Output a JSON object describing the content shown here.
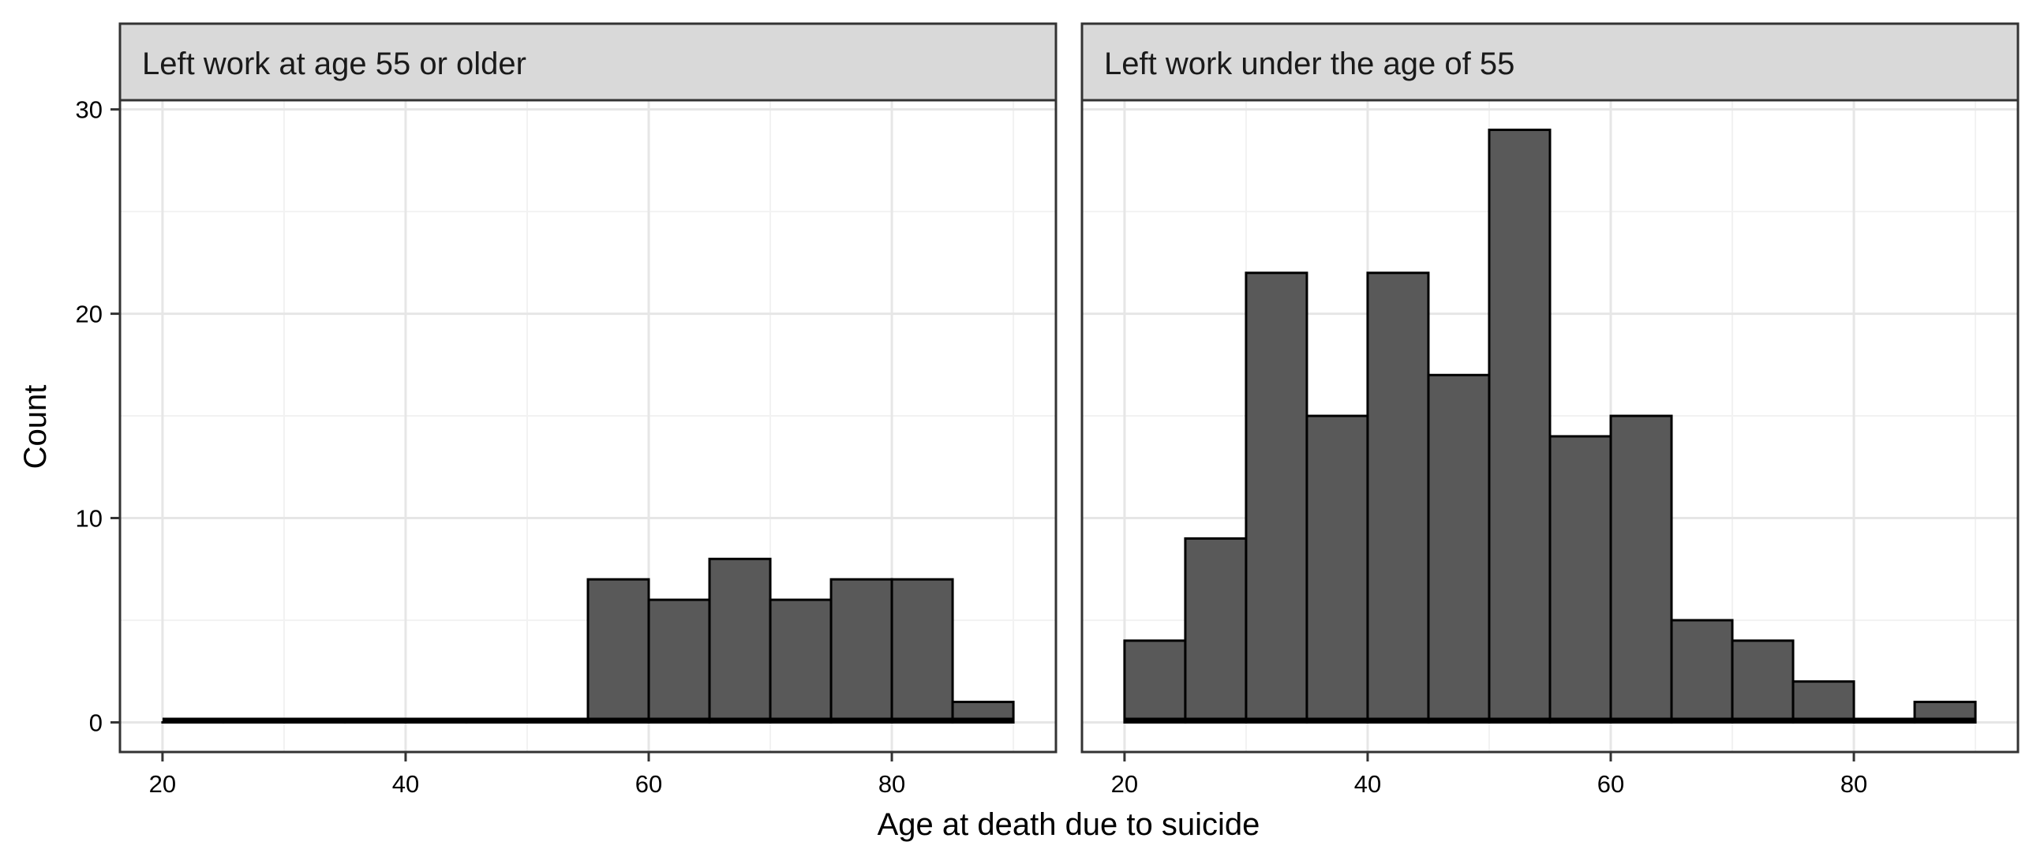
{
  "figure": {
    "xlabel": "Age at death due to suicide",
    "ylabel": "Count"
  },
  "colors": {
    "bar_fill": "#595959",
    "bar_stroke": "#000000",
    "strip_fill": "#d9d9d9",
    "grid_major": "#e6e6e6",
    "grid_minor": "#f2f2f2",
    "panel_border": "#333333"
  },
  "chart_data": [
    {
      "type": "bar",
      "title": "Left work at age 55 or older",
      "bin_width": 5,
      "bins": [
        {
          "start": 20,
          "end": 25,
          "count": 0
        },
        {
          "start": 25,
          "end": 30,
          "count": 0
        },
        {
          "start": 30,
          "end": 35,
          "count": 0
        },
        {
          "start": 35,
          "end": 40,
          "count": 0
        },
        {
          "start": 40,
          "end": 45,
          "count": 0
        },
        {
          "start": 45,
          "end": 50,
          "count": 0
        },
        {
          "start": 50,
          "end": 55,
          "count": 0
        },
        {
          "start": 55,
          "end": 60,
          "count": 7
        },
        {
          "start": 60,
          "end": 65,
          "count": 6
        },
        {
          "start": 65,
          "end": 70,
          "count": 8
        },
        {
          "start": 70,
          "end": 75,
          "count": 6
        },
        {
          "start": 75,
          "end": 80,
          "count": 7
        },
        {
          "start": 80,
          "end": 85,
          "count": 7
        },
        {
          "start": 85,
          "end": 90,
          "count": 1
        }
      ],
      "xlim": [
        16.5,
        93.5
      ],
      "ylim": [
        -1.45,
        30.45
      ],
      "x_ticks": [
        20,
        40,
        60,
        80
      ],
      "x_tick_labels": [
        "20",
        "40",
        "60",
        "80"
      ],
      "y_ticks": [
        0,
        10,
        20,
        30
      ],
      "y_tick_labels": [
        "0",
        "10",
        "20",
        "30"
      ],
      "grid": true
    },
    {
      "type": "bar",
      "title": "Left work under the age of 55",
      "bin_width": 5,
      "bins": [
        {
          "start": 20,
          "end": 25,
          "count": 4
        },
        {
          "start": 25,
          "end": 30,
          "count": 9
        },
        {
          "start": 30,
          "end": 35,
          "count": 22
        },
        {
          "start": 35,
          "end": 40,
          "count": 15
        },
        {
          "start": 40,
          "end": 45,
          "count": 22
        },
        {
          "start": 45,
          "end": 50,
          "count": 17
        },
        {
          "start": 50,
          "end": 55,
          "count": 29
        },
        {
          "start": 55,
          "end": 60,
          "count": 14
        },
        {
          "start": 60,
          "end": 65,
          "count": 15
        },
        {
          "start": 65,
          "end": 70,
          "count": 5
        },
        {
          "start": 70,
          "end": 75,
          "count": 4
        },
        {
          "start": 75,
          "end": 80,
          "count": 2
        },
        {
          "start": 80,
          "end": 85,
          "count": 0
        },
        {
          "start": 85,
          "end": 90,
          "count": 1
        }
      ],
      "xlim": [
        16.5,
        93.5
      ],
      "ylim": [
        -1.45,
        30.45
      ],
      "x_ticks": [
        20,
        40,
        60,
        80
      ],
      "x_tick_labels": [
        "20",
        "40",
        "60",
        "80"
      ],
      "y_ticks": [
        0,
        10,
        20,
        30
      ],
      "y_tick_labels": [],
      "grid": true
    }
  ]
}
